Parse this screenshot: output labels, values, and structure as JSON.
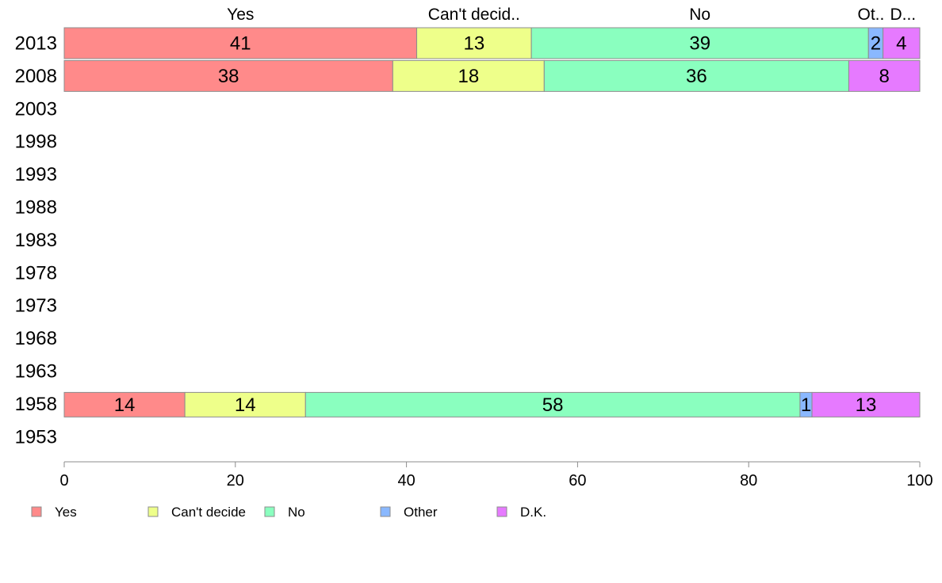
{
  "chart_data": {
    "type": "bar",
    "orientation": "horizontal",
    "stacked": true,
    "title": "",
    "xlabel": "",
    "ylabel": "",
    "xlim": [
      0,
      100
    ],
    "x_ticks": [
      0,
      20,
      40,
      60,
      80,
      100
    ],
    "grid": false,
    "legend_position": "bottom",
    "categories": [
      "2013",
      "2008",
      "2003",
      "1998",
      "1993",
      "1988",
      "1983",
      "1978",
      "1973",
      "1968",
      "1963",
      "1958",
      "1953"
    ],
    "series": [
      {
        "name": "Yes",
        "color": "#FF8A8A",
        "values": [
          41.2,
          38.4,
          null,
          null,
          null,
          null,
          null,
          null,
          null,
          null,
          null,
          14.1,
          null
        ]
      },
      {
        "name": "Can't decide",
        "color": "#EEFF8A",
        "values": [
          13.4,
          17.7,
          null,
          null,
          null,
          null,
          null,
          null,
          null,
          null,
          null,
          14.1,
          null
        ]
      },
      {
        "name": "No",
        "color": "#8AFFBF",
        "values": [
          39.4,
          35.6,
          null,
          null,
          null,
          null,
          null,
          null,
          null,
          null,
          null,
          57.8,
          null
        ]
      },
      {
        "name": "Other",
        "color": "#8AB8FF",
        "values": [
          1.7,
          0,
          null,
          null,
          null,
          null,
          null,
          null,
          null,
          null,
          null,
          1.4,
          null
        ]
      },
      {
        "name": "D.K.",
        "color": "#E67AFF",
        "values": [
          4.3,
          8.3,
          null,
          null,
          null,
          null,
          null,
          null,
          null,
          null,
          null,
          12.6,
          null
        ]
      }
    ],
    "data_labels": [
      [
        "41",
        "13",
        "39",
        "2",
        "4"
      ],
      [
        "38",
        "18",
        "36",
        "",
        "8"
      ],
      null,
      null,
      null,
      null,
      null,
      null,
      null,
      null,
      null,
      [
        "14",
        "14",
        "58",
        "1",
        "13"
      ],
      null
    ],
    "top_labels": [
      "Yes",
      "Can't decid..",
      "No",
      "Ot..",
      "D..."
    ]
  }
}
